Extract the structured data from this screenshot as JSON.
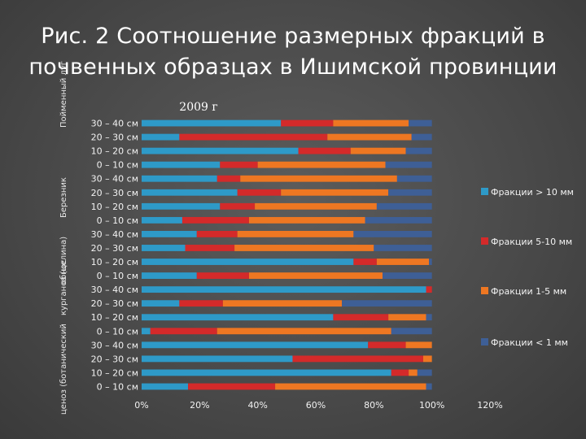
{
  "slide": {
    "title_line1": "Рис. 2 Соотношение размерных фракций в",
    "title_line2": "почвенных образцах в Ишимской провинции"
  },
  "chart_data": {
    "type": "bar",
    "orientation": "horizontal",
    "stacked": "percent",
    "title": "2009 г",
    "group_labels": [
      "Березник",
      "Пойменный луг",
      "ценоз (ботанический",
      "курганоз (целина)",
      "обнос"
    ],
    "categories": [
      "30 – 40 см",
      "20 – 30 см",
      "10 – 20 см",
      "0 – 10 см",
      "30 – 40 см",
      "20 – 30 см",
      "10 – 20 см",
      "0 – 10 см",
      "30 – 40 см",
      "20 – 30 см",
      "10 – 20 см",
      "0 – 10 см",
      "30 – 40 см",
      "20 – 30 см",
      "10 – 20 см",
      "0 – 10 см",
      "30 – 40 см",
      "20 – 30 см",
      "10 – 20 см",
      "0 – 10 см"
    ],
    "series": [
      {
        "name": "Фракции > 10 мм",
        "color": "#2e9ac8",
        "values": [
          48,
          13,
          54,
          27,
          26,
          33,
          27,
          14,
          19,
          15,
          73,
          19,
          98,
          13,
          66,
          3,
          78,
          52,
          86,
          16
        ]
      },
      {
        "name": "Фракции 5-10 мм",
        "color": "#d42a2a",
        "values": [
          18,
          51,
          18,
          13,
          8,
          15,
          12,
          23,
          14,
          17,
          8,
          18,
          2,
          15,
          19,
          23,
          13,
          45,
          6,
          30
        ]
      },
      {
        "name": "Фракции 1-5 мм",
        "color": "#ee7722",
        "values": [
          26,
          29,
          19,
          44,
          54,
          37,
          42,
          40,
          40,
          48,
          18,
          46,
          0,
          41,
          13,
          60,
          9,
          3,
          3,
          52
        ]
      },
      {
        "name": "Фракции < 1 мм",
        "color": "#3e5f96",
        "values": [
          8,
          7,
          9,
          16,
          12,
          15,
          19,
          23,
          27,
          20,
          1,
          17,
          0,
          31,
          2,
          14,
          0,
          0,
          5,
          2
        ]
      }
    ],
    "x_tick_labels": [
      "0%",
      "20%",
      "40%",
      "60%",
      "80%",
      "100%",
      "120%"
    ],
    "xlim": [
      0,
      120
    ],
    "legend_position": "right",
    "grid": false
  }
}
